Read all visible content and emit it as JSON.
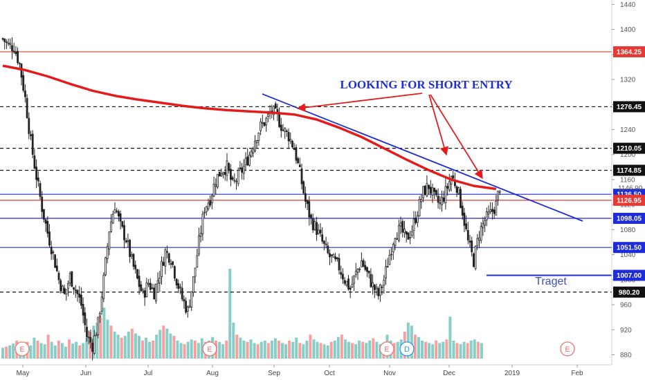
{
  "chart_data": {
    "type": "candlestick",
    "y_axis": {
      "ticks": [
        880,
        920,
        960,
        1000,
        1040,
        1080,
        1120,
        1160,
        1200,
        1240,
        1280,
        1320,
        1360,
        1400,
        1440
      ],
      "ylim": [
        864,
        1447
      ],
      "side": "right",
      "current_price_label": "1146.90"
    },
    "x_axis": {
      "labels": [
        "May",
        "Jun",
        "Jul",
        "Aug",
        "Sep",
        "Oct",
        "Nov",
        "Dec",
        "2019",
        "Feb"
      ]
    },
    "levels": [
      {
        "value": 1364.25,
        "label": "1364.25",
        "line_color": "#e53935",
        "style": "solid",
        "badge_color": "#e53935"
      },
      {
        "value": 1276.45,
        "label": "1276.45",
        "line_color": "#111111",
        "style": "dashed",
        "badge_color": "#111111"
      },
      {
        "value": 1210.05,
        "label": "1210.05",
        "line_color": "#111111",
        "style": "dashed",
        "badge_color": "#111111"
      },
      {
        "value": 1174.85,
        "label": "1174.85",
        "line_color": "#111111",
        "style": "dashed",
        "badge_color": "#111111"
      },
      {
        "value": 1136.5,
        "label": "1136.50",
        "line_color": "#1e2bd8",
        "style": "solid",
        "badge_color": "#1e2bd8"
      },
      {
        "value": 1126.95,
        "label": "1126.95",
        "line_color": "#e53935",
        "style": "solid",
        "badge_color": "#e53935"
      },
      {
        "value": 1098.05,
        "label": "1098.05",
        "line_color": "#1e2bd8",
        "style": "solid",
        "badge_color": "#1e2bd8"
      },
      {
        "value": 1051.5,
        "label": "1051.50",
        "line_color": "#1e2bd8",
        "style": "solid",
        "badge_color": "#1e2bd8"
      },
      {
        "value": 1007.0,
        "label": "1007.00",
        "line_color": "#1e2bd8",
        "style": "segment",
        "badge_color": "#1e2bd8"
      },
      {
        "value": 980.2,
        "label": "980.20",
        "line_color": "#111111",
        "style": "dashed",
        "badge_color": "#111111"
      }
    ],
    "ohlc_path": [
      [
        0,
        1385
      ],
      [
        3,
        1375
      ],
      [
        6,
        1372
      ],
      [
        9,
        1345
      ],
      [
        12,
        1290
      ],
      [
        15,
        1220
      ],
      [
        18,
        1165
      ],
      [
        21,
        1115
      ],
      [
        24,
        1075
      ],
      [
        27,
        1040
      ],
      [
        30,
        1000
      ],
      [
        33,
        975
      ],
      [
        36,
        1005
      ],
      [
        39,
        985
      ],
      [
        42,
        960
      ],
      [
        45,
        910
      ],
      [
        48,
        895
      ],
      [
        51,
        930
      ],
      [
        54,
        1000
      ],
      [
        57,
        1080
      ],
      [
        60,
        1120
      ],
      [
        63,
        1085
      ],
      [
        66,
        1065
      ],
      [
        69,
        1030
      ],
      [
        72,
        1000
      ],
      [
        75,
        975
      ],
      [
        78,
        995
      ],
      [
        81,
        980
      ],
      [
        84,
        1010
      ],
      [
        87,
        1045
      ],
      [
        90,
        1035
      ],
      [
        93,
        1000
      ],
      [
        96,
        970
      ],
      [
        99,
        950
      ],
      [
        102,
        1000
      ],
      [
        105,
        1060
      ],
      [
        108,
        1115
      ],
      [
        111,
        1130
      ],
      [
        114,
        1160
      ],
      [
        117,
        1175
      ],
      [
        120,
        1180
      ],
      [
        123,
        1150
      ],
      [
        126,
        1165
      ],
      [
        129,
        1180
      ],
      [
        132,
        1200
      ],
      [
        135,
        1225
      ],
      [
        138,
        1245
      ],
      [
        141,
        1255
      ],
      [
        144,
        1270
      ],
      [
        147,
        1260
      ],
      [
        150,
        1240
      ],
      [
        153,
        1230
      ],
      [
        156,
        1210
      ],
      [
        159,
        1170
      ],
      [
        162,
        1125
      ],
      [
        165,
        1095
      ],
      [
        168,
        1080
      ],
      [
        171,
        1060
      ],
      [
        174,
        1040
      ],
      [
        177,
        1030
      ],
      [
        180,
        1020
      ],
      [
        183,
        1000
      ],
      [
        186,
        985
      ],
      [
        189,
        1010
      ],
      [
        192,
        1030
      ],
      [
        195,
        1010
      ],
      [
        198,
        990
      ],
      [
        201,
        975
      ],
      [
        204,
        1000
      ],
      [
        207,
        1040
      ],
      [
        210,
        1075
      ],
      [
        213,
        1080
      ],
      [
        216,
        1065
      ],
      [
        219,
        1080
      ],
      [
        222,
        1110
      ],
      [
        225,
        1140
      ],
      [
        228,
        1150
      ],
      [
        231,
        1130
      ],
      [
        234,
        1120
      ],
      [
        237,
        1140
      ],
      [
        240,
        1165
      ],
      [
        243,
        1150
      ],
      [
        246,
        1110
      ],
      [
        249,
        1060
      ],
      [
        252,
        1030
      ],
      [
        255,
        1075
      ],
      [
        258,
        1095
      ],
      [
        261,
        1105
      ],
      [
        264,
        1120
      ],
      [
        266,
        1150
      ]
    ],
    "ma_path": [
      [
        0,
        1342
      ],
      [
        12,
        1335
      ],
      [
        24,
        1325
      ],
      [
        36,
        1313
      ],
      [
        48,
        1302
      ],
      [
        60,
        1294
      ],
      [
        72,
        1288
      ],
      [
        84,
        1283
      ],
      [
        96,
        1278
      ],
      [
        108,
        1274
      ],
      [
        120,
        1271
      ],
      [
        132,
        1269
      ],
      [
        144,
        1267
      ],
      [
        156,
        1264
      ],
      [
        168,
        1256
      ],
      [
        180,
        1243
      ],
      [
        192,
        1228
      ],
      [
        204,
        1210
      ],
      [
        216,
        1192
      ],
      [
        228,
        1175
      ],
      [
        240,
        1160
      ],
      [
        252,
        1150
      ],
      [
        264,
        1145
      ]
    ],
    "ma_color": "#e31b1b",
    "trendline": {
      "start": [
        140,
        1288
      ],
      "end": [
        308,
        1100
      ],
      "color": "#1e2bd8"
    },
    "volume": [
      18,
      20,
      22,
      25,
      30,
      24,
      20,
      28,
      22,
      35,
      30,
      26,
      24,
      40,
      28,
      22,
      30,
      26,
      20,
      32,
      25,
      28,
      22,
      26,
      35,
      45,
      55,
      60,
      70,
      85,
      65,
      55,
      45,
      40,
      35,
      38,
      45,
      50,
      42,
      38,
      30,
      35,
      28,
      30,
      40,
      48,
      55,
      50,
      42,
      38,
      30,
      26,
      24,
      28,
      32,
      30,
      26,
      34,
      28,
      30,
      36,
      30,
      28,
      24,
      30,
      150,
      60,
      40,
      35,
      30,
      28,
      32,
      26,
      24,
      28,
      30,
      26,
      30,
      34,
      30,
      26,
      24,
      30,
      28,
      35,
      26,
      24,
      30,
      40,
      32,
      28,
      26,
      24,
      22,
      28,
      30,
      36,
      40,
      32,
      28,
      26,
      24,
      30,
      28,
      26,
      30,
      34,
      28,
      24,
      22,
      40,
      30,
      26,
      28,
      32,
      45,
      60,
      55,
      40,
      36,
      30,
      28,
      26,
      24,
      30,
      26,
      28,
      32,
      70,
      30,
      26,
      24,
      28,
      26,
      30,
      32,
      28,
      26
    ],
    "events": [
      {
        "x": 32,
        "label": "E",
        "color": "#e57373"
      },
      {
        "x": 303,
        "label": "E",
        "color": "#e57373"
      },
      {
        "x": 559,
        "label": "E",
        "color": "#e57373"
      },
      {
        "x": 588,
        "label": "D",
        "color": "#2196f3"
      },
      {
        "x": 820,
        "label": "E",
        "color": "#e57373"
      }
    ],
    "annotations": {
      "headline": "LOOKING FOR SHORT ENTRY",
      "target_label": "Traget"
    },
    "candle_up_color": "#26a69a",
    "candle_down_color": "#ef5350",
    "candle_body_color": "#222222"
  }
}
